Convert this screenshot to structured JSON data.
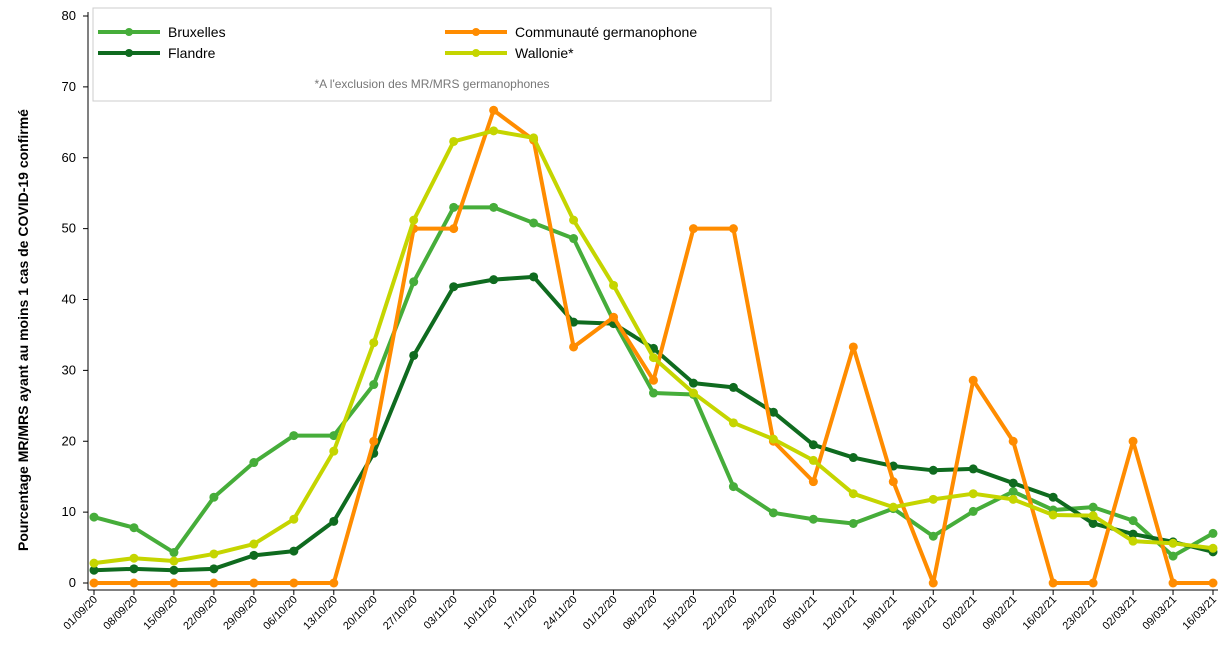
{
  "chart_data": {
    "type": "line",
    "y_label": "Pourcentage MR/MRS ayant au moins 1 cas de COVID-19 confirmé",
    "note": "*A l'exclusion des MR/MRS germanophones",
    "categories": [
      "01/09/20",
      "08/09/20",
      "15/09/20",
      "22/09/20",
      "29/09/20",
      "06/10/20",
      "13/10/20",
      "20/10/20",
      "27/10/20",
      "03/11/20",
      "10/11/20",
      "17/11/20",
      "24/11/20",
      "01/12/20",
      "08/12/20",
      "15/12/20",
      "22/12/20",
      "29/12/20",
      "05/01/21",
      "12/01/21",
      "19/01/21",
      "26/01/21",
      "02/02/21",
      "09/02/21",
      "16/02/21",
      "23/02/21",
      "02/03/21",
      "09/03/21",
      "16/03/21"
    ],
    "series": [
      {
        "name": "Bruxelles",
        "color": "#46ad3a",
        "values": [
          9.3,
          7.8,
          4.3,
          12.1,
          17,
          20.8,
          20.8,
          28,
          42.5,
          53,
          53,
          50.8,
          48.6,
          37,
          26.8,
          26.6,
          13.6,
          9.9,
          9,
          8.4,
          10.5,
          6.6,
          10.1,
          12.9,
          10.3,
          10.7,
          8.8,
          3.8,
          7
        ]
      },
      {
        "name": "Flandre",
        "color": "#0f6b1f",
        "values": [
          1.8,
          2,
          1.8,
          2,
          3.9,
          4.5,
          8.7,
          18.3,
          32.1,
          41.8,
          42.8,
          43.2,
          36.8,
          36.6,
          33.1,
          28.2,
          27.6,
          24.1,
          19.5,
          17.7,
          16.5,
          15.9,
          16.1,
          14.1,
          12.1,
          8.4,
          6.9,
          5.8,
          4.4
        ]
      },
      {
        "name": "Communauté germanophone",
        "color": "#ff8c00",
        "values": [
          0,
          0,
          0,
          0,
          0,
          0,
          0,
          20,
          50,
          50,
          66.7,
          62.5,
          33.3,
          37.5,
          28.6,
          50,
          50,
          20,
          14.3,
          33.3,
          14.3,
          0,
          28.6,
          20,
          0,
          0,
          20,
          0,
          0
        ]
      },
      {
        "name": "Wallonie*",
        "color": "#c5d500",
        "values": [
          2.8,
          3.5,
          3.1,
          4.1,
          5.5,
          9,
          18.6,
          33.9,
          51.2,
          62.3,
          63.8,
          62.8,
          51.2,
          42,
          31.8,
          26.8,
          22.6,
          20.3,
          17.3,
          12.6,
          10.7,
          11.8,
          12.6,
          11.8,
          9.6,
          9.5,
          5.9,
          5.6,
          4.9
        ]
      }
    ],
    "ylim": [
      0,
      80
    ],
    "yticks": [
      0,
      10,
      20,
      30,
      40,
      50,
      60,
      70,
      80
    ],
    "grid": false
  }
}
